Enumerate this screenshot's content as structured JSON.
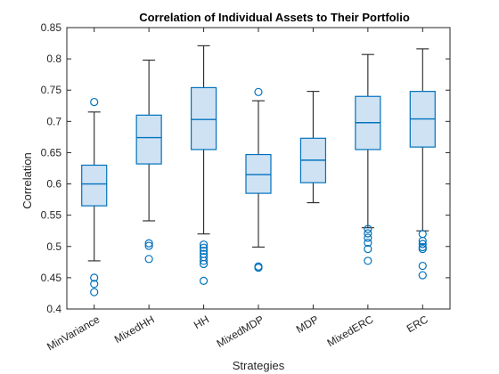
{
  "chart_data": {
    "type": "boxplot",
    "title": "Correlation of Individual Assets to Their Portfolio",
    "xlabel": "Strategies",
    "ylabel": "Correlation",
    "ylim": [
      0.4,
      0.85
    ],
    "yticks": [
      0.4,
      0.45,
      0.5,
      0.55,
      0.6,
      0.65,
      0.7,
      0.75,
      0.8,
      0.85
    ],
    "ytick_labels": [
      "0.4",
      "0.45",
      "0.5",
      "0.55",
      "0.6",
      "0.65",
      "0.7",
      "0.75",
      "0.8",
      "0.85"
    ],
    "categories": [
      "MinVariance",
      "MixedHH",
      "HH",
      "MixedMDP",
      "MDP",
      "MixedERC",
      "ERC"
    ],
    "boxes": [
      {
        "whisker_low": 0.477,
        "q1": 0.565,
        "median": 0.6,
        "q3": 0.63,
        "whisker_high": 0.715,
        "outliers": [
          0.731,
          0.45,
          0.44,
          0.427
        ]
      },
      {
        "whisker_low": 0.541,
        "q1": 0.632,
        "median": 0.674,
        "q3": 0.71,
        "whisker_high": 0.798,
        "outliers": [
          0.505,
          0.501,
          0.48
        ]
      },
      {
        "whisker_low": 0.52,
        "q1": 0.655,
        "median": 0.703,
        "q3": 0.754,
        "whisker_high": 0.821,
        "outliers": [
          0.503,
          0.498,
          0.493,
          0.488,
          0.483,
          0.477,
          0.472,
          0.445
        ]
      },
      {
        "whisker_low": 0.499,
        "q1": 0.585,
        "median": 0.615,
        "q3": 0.647,
        "whisker_high": 0.733,
        "outliers": [
          0.747,
          0.468,
          0.466
        ]
      },
      {
        "whisker_low": 0.57,
        "q1": 0.602,
        "median": 0.638,
        "q3": 0.673,
        "whisker_high": 0.748,
        "outliers": []
      },
      {
        "whisker_low": 0.53,
        "q1": 0.655,
        "median": 0.698,
        "q3": 0.74,
        "whisker_high": 0.807,
        "outliers": [
          0.528,
          0.521,
          0.514,
          0.506,
          0.496,
          0.477
        ]
      },
      {
        "whisker_low": 0.525,
        "q1": 0.659,
        "median": 0.704,
        "q3": 0.748,
        "whisker_high": 0.816,
        "outliers": [
          0.52,
          0.509,
          0.504,
          0.499,
          0.496,
          0.469,
          0.454
        ]
      }
    ],
    "grid": false,
    "legend": "none",
    "colors": {
      "box_fill": "#cfe2f3",
      "box_edge": "#0072bd",
      "whisker": "#262626",
      "outlier": "#0072bd",
      "axis": "#262626"
    }
  }
}
